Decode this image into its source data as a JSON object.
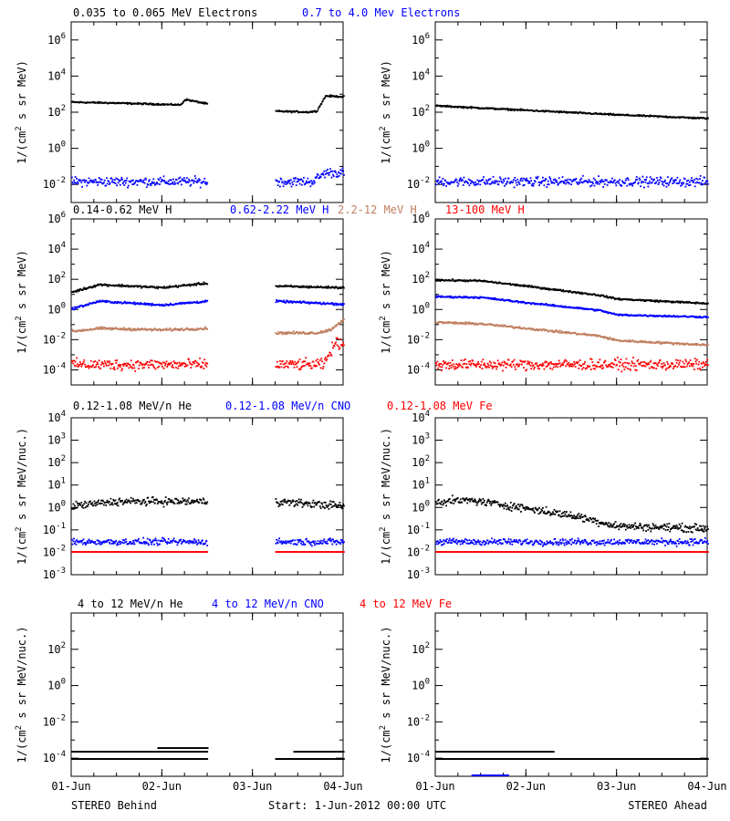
{
  "footer": {
    "left": "STEREO Behind",
    "center": "Start:  1-Jun-2012 00:00 UTC",
    "right": "STEREO Ahead"
  },
  "rows": [
    {
      "legend": [
        {
          "label": "0.035 to 0.065 MeV Electrons",
          "color": "#000000"
        },
        {
          "label": "0.7 to 4.0 Mev Electrons",
          "color": "#0000ff"
        }
      ]
    },
    {
      "legend": [
        {
          "label": "0.14-0.62 MeV H",
          "color": "#000000"
        },
        {
          "label": "0.62-2.22 MeV H",
          "color": "#0000ff"
        },
        {
          "label": "2.2-12 MeV H",
          "color": "#c08060"
        },
        {
          "label": "13-100 MeV H",
          "color": "#ff0000"
        }
      ]
    },
    {
      "legend": [
        {
          "label": "0.12-1.08 MeV/n He",
          "color": "#000000"
        },
        {
          "label": "0.12-1.08 MeV/n CNO",
          "color": "#0000ff"
        },
        {
          "label": "0.12-1.08 MeV Fe",
          "color": "#ff0000"
        }
      ]
    },
    {
      "legend": [
        {
          "label": "4 to 12 MeV/n He",
          "color": "#000000"
        },
        {
          "label": "4 to 12 MeV/n CNO",
          "color": "#0000ff"
        },
        {
          "label": "4 to 12 MeV Fe",
          "color": "#ff0000"
        }
      ]
    }
  ],
  "chart_data": [
    {
      "type": "scatter",
      "panel": "STEREO Behind electrons",
      "ylabel_base": "1/(cm",
      "ylabel_sup": "2",
      "ylabel_rest": " s sr MeV)",
      "log_y": true,
      "ylim_exp": [
        -3,
        7
      ],
      "ytick_exps": [
        -2,
        0,
        2,
        4,
        6
      ],
      "xlim": [
        0,
        3
      ],
      "xticks": [
        0,
        1,
        2,
        3
      ],
      "xticklabels": [
        "01-Jun",
        "02-Jun",
        "03-Jun",
        "04-Jun"
      ],
      "data_gaps": [
        [
          1.5,
          2.25
        ]
      ],
      "series": [
        {
          "color": "#000000",
          "noise": 0.03,
          "x": [
            0,
            0.5,
            1.2,
            1.25,
            1.5
          ],
          "y_exp": [
            2.6,
            2.55,
            2.45,
            2.75,
            2.5
          ]
        },
        {
          "color": "#000000",
          "noise": 0.03,
          "x": [
            2.25,
            2.6,
            2.7,
            2.8,
            3.0
          ],
          "y_exp": [
            2.1,
            2.05,
            2.1,
            2.95,
            2.9
          ]
        },
        {
          "color": "#0000ff",
          "noise": 0.18,
          "x": [
            0,
            1.5
          ],
          "y_exp": [
            -1.8,
            -1.8
          ]
        },
        {
          "color": "#0000ff",
          "noise": 0.18,
          "x": [
            2.25,
            2.65,
            2.8,
            3.0
          ],
          "y_exp": [
            -1.8,
            -1.8,
            -1.3,
            -1.3
          ]
        }
      ]
    },
    {
      "type": "scatter",
      "panel": "STEREO Ahead electrons",
      "ylabel_base": "1/(cm",
      "ylabel_sup": "2",
      "ylabel_rest": " s sr MeV)",
      "log_y": true,
      "ylim_exp": [
        -3,
        7
      ],
      "ytick_exps": [
        -2,
        0,
        2,
        4,
        6
      ],
      "xlim": [
        0,
        3
      ],
      "xticks": [
        0,
        1,
        2,
        3
      ],
      "xticklabels": [
        "01-Jun",
        "02-Jun",
        "03-Jun",
        "04-Jun"
      ],
      "data_gaps": [],
      "series": [
        {
          "color": "#000000",
          "noise": 0.03,
          "x": [
            0,
            1,
            2,
            3
          ],
          "y_exp": [
            2.4,
            2.15,
            1.9,
            1.7
          ]
        },
        {
          "color": "#0000ff",
          "noise": 0.18,
          "x": [
            0,
            3
          ],
          "y_exp": [
            -1.8,
            -1.8
          ]
        }
      ]
    },
    {
      "type": "scatter",
      "panel": "STEREO Behind protons",
      "ylabel_base": "1/(cm",
      "ylabel_sup": "2",
      "ylabel_rest": " s sr MeV)",
      "log_y": true,
      "ylim_exp": [
        -5,
        6
      ],
      "ytick_exps": [
        -4,
        -2,
        0,
        2,
        4,
        6
      ],
      "xlim": [
        0,
        3
      ],
      "xticks": [
        0,
        1,
        2,
        3
      ],
      "xticklabels": [
        "01-Jun",
        "02-Jun",
        "03-Jun",
        "04-Jun"
      ],
      "data_gaps": [
        [
          1.5,
          2.25
        ]
      ],
      "series": [
        {
          "color": "#000000",
          "noise": 0.05,
          "x": [
            0,
            0.3,
            1.0,
            1.5
          ],
          "y_exp": [
            1.2,
            1.7,
            1.5,
            1.8
          ]
        },
        {
          "color": "#000000",
          "noise": 0.05,
          "x": [
            2.25,
            3.0
          ],
          "y_exp": [
            1.6,
            1.5
          ]
        },
        {
          "color": "#0000ff",
          "noise": 0.05,
          "x": [
            0,
            0.3,
            1.0,
            1.5
          ],
          "y_exp": [
            0.1,
            0.6,
            0.35,
            0.6
          ]
        },
        {
          "color": "#0000ff",
          "noise": 0.05,
          "x": [
            2.25,
            3.0
          ],
          "y_exp": [
            0.6,
            0.4
          ]
        },
        {
          "color": "#c08060",
          "noise": 0.06,
          "x": [
            0,
            0.3,
            1.0,
            1.5
          ],
          "y_exp": [
            -1.4,
            -1.2,
            -1.3,
            -1.2
          ]
        },
        {
          "color": "#c08060",
          "noise": 0.06,
          "x": [
            2.25,
            2.7,
            2.85,
            3.0
          ],
          "y_exp": [
            -1.5,
            -1.5,
            -1.3,
            -0.6
          ]
        },
        {
          "color": "#ff0000",
          "noise": 0.25,
          "x": [
            0,
            1.5
          ],
          "y_exp": [
            -3.6,
            -3.6
          ]
        },
        {
          "color": "#ff0000",
          "noise": 0.25,
          "x": [
            2.25,
            2.78,
            2.9,
            3.0
          ],
          "y_exp": [
            -3.6,
            -3.6,
            -2.2,
            -2.2
          ]
        }
      ]
    },
    {
      "type": "scatter",
      "panel": "STEREO Ahead protons",
      "ylabel_base": "1/(cm",
      "ylabel_sup": "2",
      "ylabel_rest": " s sr MeV)",
      "log_y": true,
      "ylim_exp": [
        -5,
        6
      ],
      "ytick_exps": [
        -4,
        -2,
        0,
        2,
        4,
        6
      ],
      "xlim": [
        0,
        3
      ],
      "xticks": [
        0,
        1,
        2,
        3
      ],
      "xticklabels": [
        "01-Jun",
        "02-Jun",
        "03-Jun",
        "04-Jun"
      ],
      "data_gaps": [],
      "series": [
        {
          "color": "#000000",
          "noise": 0.04,
          "x": [
            0,
            0.5,
            1.0,
            1.8,
            2.0,
            3.0
          ],
          "y_exp": [
            2.0,
            1.95,
            1.6,
            1.0,
            0.75,
            0.45
          ]
        },
        {
          "color": "#0000ff",
          "noise": 0.04,
          "x": [
            0,
            0.5,
            1.0,
            1.8,
            2.0,
            3.0
          ],
          "y_exp": [
            0.9,
            0.85,
            0.5,
            0.0,
            -0.3,
            -0.45
          ]
        },
        {
          "color": "#c08060",
          "noise": 0.05,
          "x": [
            0,
            0.5,
            1.0,
            1.8,
            2.0,
            3.0
          ],
          "y_exp": [
            -0.8,
            -0.9,
            -1.2,
            -1.7,
            -2.0,
            -2.3
          ]
        },
        {
          "color": "#ff0000",
          "noise": 0.25,
          "x": [
            0,
            3
          ],
          "y_exp": [
            -3.6,
            -3.6
          ]
        }
      ]
    },
    {
      "type": "scatter",
      "panel": "STEREO Behind He/CNO/Fe 0.12-1.08",
      "ylabel_base": "1/(cm",
      "ylabel_sup": "2",
      "ylabel_rest": " s sr MeV/nuc.)",
      "log_y": true,
      "ylim_exp": [
        -3,
        4
      ],
      "ytick_exps": [
        -3,
        -2,
        -1,
        0,
        1,
        2,
        3,
        4
      ],
      "xlim": [
        0,
        3
      ],
      "xticks": [
        0,
        1,
        2,
        3
      ],
      "xticklabels": [
        "01-Jun",
        "02-Jun",
        "03-Jun",
        "04-Jun"
      ],
      "data_gaps": [
        [
          1.5,
          2.25
        ]
      ],
      "series": [
        {
          "color": "#000000",
          "noise": 0.12,
          "x": [
            0,
            0.5,
            1.5
          ],
          "y_exp": [
            0.1,
            0.3,
            0.3
          ]
        },
        {
          "color": "#000000",
          "noise": 0.12,
          "x": [
            2.25,
            3.0
          ],
          "y_exp": [
            0.3,
            0.1
          ]
        },
        {
          "color": "#0000ff",
          "noise": 0.1,
          "x": [
            0,
            1.5
          ],
          "y_exp": [
            -1.5,
            -1.5
          ]
        },
        {
          "color": "#0000ff",
          "noise": 0.1,
          "x": [
            2.25,
            3.0
          ],
          "y_exp": [
            -1.5,
            -1.5
          ]
        },
        {
          "color": "#ff0000",
          "noise": 0.0,
          "x": [
            0,
            1.5
          ],
          "y_exp": [
            -1.95,
            -1.95
          ]
        },
        {
          "color": "#ff0000",
          "noise": 0.0,
          "x": [
            2.25,
            3.0
          ],
          "y_exp": [
            -1.95,
            -1.95
          ]
        }
      ]
    },
    {
      "type": "scatter",
      "panel": "STEREO Ahead He/CNO/Fe 0.12-1.08",
      "ylabel_base": "1/(cm",
      "ylabel_sup": "2",
      "ylabel_rest": " s sr MeV/nuc.)",
      "log_y": true,
      "ylim_exp": [
        -3,
        4
      ],
      "ytick_exps": [
        -3,
        -2,
        -1,
        0,
        1,
        2,
        3,
        4
      ],
      "xlim": [
        0,
        3
      ],
      "xticks": [
        0,
        1,
        2,
        3
      ],
      "xticklabels": [
        "01-Jun",
        "02-Jun",
        "03-Jun",
        "04-Jun"
      ],
      "data_gaps": [],
      "series": [
        {
          "color": "#000000",
          "noise": 0.12,
          "x": [
            0,
            0.4,
            1.0,
            1.6,
            2.0,
            3.0
          ],
          "y_exp": [
            0.3,
            0.35,
            0.0,
            -0.4,
            -0.8,
            -0.9
          ]
        },
        {
          "color": "#0000ff",
          "noise": 0.1,
          "x": [
            0,
            3
          ],
          "y_exp": [
            -1.5,
            -1.5
          ]
        },
        {
          "color": "#ff0000",
          "noise": 0.0,
          "x": [
            0,
            3
          ],
          "y_exp": [
            -1.95,
            -1.95
          ]
        }
      ]
    },
    {
      "type": "scatter",
      "panel": "STEREO Behind He/CNO/Fe 4-12",
      "ylabel_base": "1/(cm",
      "ylabel_sup": "2",
      "ylabel_rest": " s sr MeV/nuc.)",
      "log_y": true,
      "ylim_exp": [
        -5,
        4
      ],
      "ytick_exps": [
        -4,
        -2,
        0,
        2
      ],
      "xlim": [
        0,
        3
      ],
      "xticks": [
        0,
        1,
        2,
        3
      ],
      "xticklabels": [
        "01-Jun",
        "02-Jun",
        "03-Jun",
        "04-Jun"
      ],
      "data_gaps": [
        [
          1.5,
          2.25
        ]
      ],
      "series": [
        {
          "color": "#000000",
          "noise": 0.0,
          "x": [
            0,
            1.5
          ],
          "y_exp": [
            -3.6,
            -3.6
          ]
        },
        {
          "color": "#000000",
          "noise": 0.0,
          "x": [
            0,
            1.5
          ],
          "y_exp": [
            -4.0,
            -4.0
          ]
        },
        {
          "color": "#000000",
          "noise": 0.0,
          "x": [
            0.95,
            1.5
          ],
          "y_exp": [
            -3.4,
            -3.4
          ]
        },
        {
          "color": "#000000",
          "noise": 0.0,
          "x": [
            2.25,
            3.0
          ],
          "y_exp": [
            -4.0,
            -4.0
          ]
        },
        {
          "color": "#000000",
          "noise": 0.0,
          "x": [
            2.45,
            3.0
          ],
          "y_exp": [
            -3.6,
            -3.6
          ]
        }
      ]
    },
    {
      "type": "scatter",
      "panel": "STEREO Ahead He/CNO/Fe 4-12",
      "ylabel_base": "1/(cm",
      "ylabel_sup": "2",
      "ylabel_rest": " s sr MeV/nuc.)",
      "log_y": true,
      "ylim_exp": [
        -5,
        4
      ],
      "ytick_exps": [
        -4,
        -2,
        0,
        2
      ],
      "xlim": [
        0,
        3
      ],
      "xticks": [
        0,
        1,
        2,
        3
      ],
      "xticklabels": [
        "01-Jun",
        "02-Jun",
        "03-Jun",
        "04-Jun"
      ],
      "data_gaps": [],
      "series": [
        {
          "color": "#000000",
          "noise": 0.0,
          "x": [
            0,
            1.3
          ],
          "y_exp": [
            -3.6,
            -3.6
          ]
        },
        {
          "color": "#000000",
          "noise": 0.0,
          "x": [
            0,
            3.0
          ],
          "y_exp": [
            -4.0,
            -4.0
          ]
        },
        {
          "color": "#0000ff",
          "noise": 0.0,
          "x": [
            0.4,
            0.8
          ],
          "y_exp": [
            -4.9,
            -4.9
          ]
        }
      ]
    }
  ]
}
